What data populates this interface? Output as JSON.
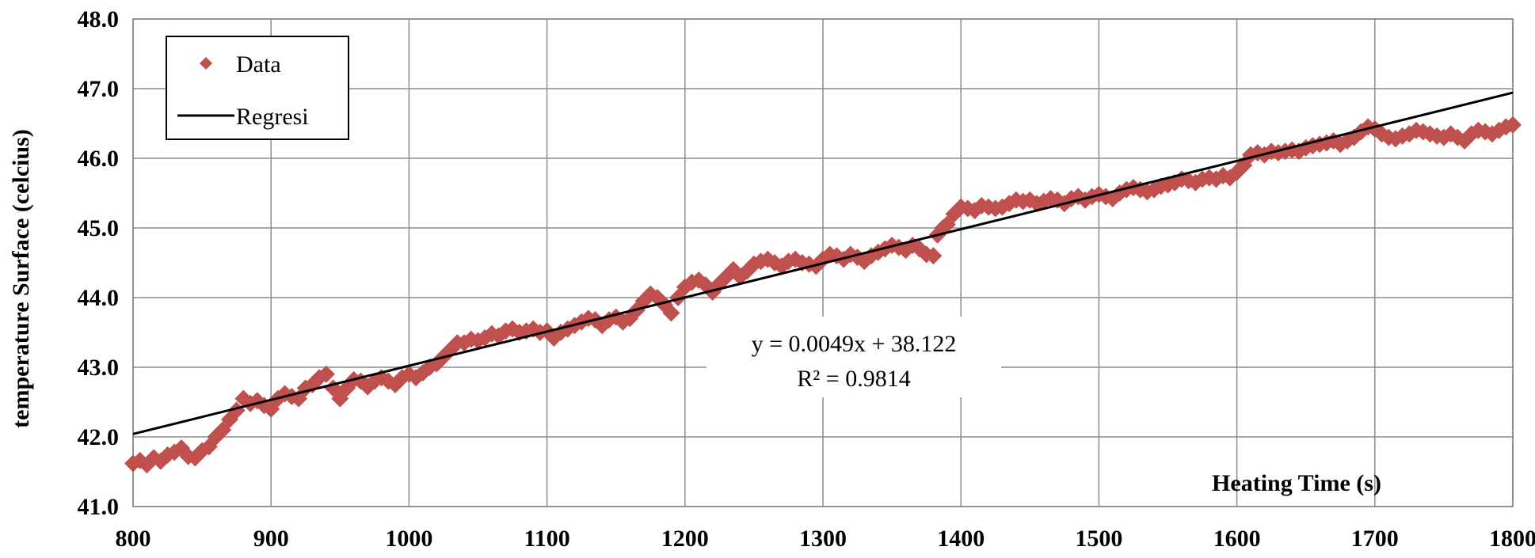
{
  "chart_data": {
    "type": "scatter",
    "xlabel": "Heating Time (s)",
    "ylabel": "temperature Surface (celcius)",
    "xlim": [
      800,
      1800
    ],
    "ylim": [
      41.0,
      48.0
    ],
    "x_ticks": [
      "800",
      "900",
      "1000",
      "1100",
      "1200",
      "1300",
      "1400",
      "1500",
      "1600",
      "1700",
      "1800"
    ],
    "y_ticks": [
      "41.0",
      "42.0",
      "43.0",
      "44.0",
      "45.0",
      "46.0",
      "47.0",
      "48.0"
    ],
    "grid": true,
    "legend": {
      "placement": "top-left",
      "entries": [
        {
          "label": "Data",
          "marker": "diamond",
          "color": "#c0504d"
        },
        {
          "label": "Regresi",
          "marker": "line",
          "color": "#000000"
        }
      ]
    },
    "annotation": {
      "equation": "y = 0.0049x + 38.122",
      "r_squared": "R² = 0.9814"
    },
    "regression": {
      "slope": 0.0049,
      "intercept": 38.122,
      "x_range": [
        800,
        1800
      ]
    },
    "series": [
      {
        "name": "Data",
        "color": "#c0504d",
        "points": [
          [
            800,
            41.62
          ],
          [
            805,
            41.66
          ],
          [
            810,
            41.6
          ],
          [
            815,
            41.7
          ],
          [
            820,
            41.65
          ],
          [
            825,
            41.74
          ],
          [
            830,
            41.78
          ],
          [
            835,
            41.84
          ],
          [
            840,
            41.72
          ],
          [
            845,
            41.7
          ],
          [
            850,
            41.8
          ],
          [
            855,
            41.86
          ],
          [
            860,
            42.0
          ],
          [
            865,
            42.1
          ],
          [
            870,
            42.25
          ],
          [
            875,
            42.38
          ],
          [
            880,
            42.55
          ],
          [
            885,
            42.48
          ],
          [
            890,
            42.52
          ],
          [
            895,
            42.45
          ],
          [
            900,
            42.4
          ],
          [
            905,
            42.55
          ],
          [
            910,
            42.62
          ],
          [
            915,
            42.58
          ],
          [
            920,
            42.55
          ],
          [
            925,
            42.7
          ],
          [
            930,
            42.75
          ],
          [
            935,
            42.85
          ],
          [
            940,
            42.9
          ],
          [
            945,
            42.7
          ],
          [
            950,
            42.55
          ],
          [
            955,
            42.7
          ],
          [
            960,
            42.82
          ],
          [
            965,
            42.8
          ],
          [
            970,
            42.72
          ],
          [
            975,
            42.8
          ],
          [
            980,
            42.85
          ],
          [
            985,
            42.8
          ],
          [
            990,
            42.75
          ],
          [
            995,
            42.85
          ],
          [
            1000,
            42.9
          ],
          [
            1005,
            42.85
          ],
          [
            1010,
            42.92
          ],
          [
            1015,
            43.0
          ],
          [
            1020,
            43.05
          ],
          [
            1025,
            43.15
          ],
          [
            1030,
            43.25
          ],
          [
            1035,
            43.35
          ],
          [
            1040,
            43.35
          ],
          [
            1045,
            43.4
          ],
          [
            1050,
            43.38
          ],
          [
            1055,
            43.42
          ],
          [
            1060,
            43.48
          ],
          [
            1065,
            43.45
          ],
          [
            1070,
            43.52
          ],
          [
            1075,
            43.55
          ],
          [
            1080,
            43.5
          ],
          [
            1085,
            43.52
          ],
          [
            1090,
            43.55
          ],
          [
            1095,
            43.5
          ],
          [
            1100,
            43.52
          ],
          [
            1105,
            43.42
          ],
          [
            1110,
            43.5
          ],
          [
            1115,
            43.55
          ],
          [
            1120,
            43.6
          ],
          [
            1125,
            43.65
          ],
          [
            1130,
            43.7
          ],
          [
            1135,
            43.68
          ],
          [
            1140,
            43.6
          ],
          [
            1145,
            43.68
          ],
          [
            1150,
            43.72
          ],
          [
            1155,
            43.65
          ],
          [
            1160,
            43.7
          ],
          [
            1165,
            43.82
          ],
          [
            1170,
            43.95
          ],
          [
            1175,
            44.05
          ],
          [
            1180,
            44.0
          ],
          [
            1185,
            43.9
          ],
          [
            1190,
            43.78
          ],
          [
            1195,
            44.0
          ],
          [
            1200,
            44.15
          ],
          [
            1205,
            44.22
          ],
          [
            1210,
            44.25
          ],
          [
            1215,
            44.18
          ],
          [
            1220,
            44.08
          ],
          [
            1225,
            44.2
          ],
          [
            1230,
            44.3
          ],
          [
            1235,
            44.4
          ],
          [
            1240,
            44.3
          ],
          [
            1245,
            44.38
          ],
          [
            1250,
            44.48
          ],
          [
            1255,
            44.52
          ],
          [
            1260,
            44.55
          ],
          [
            1265,
            44.5
          ],
          [
            1270,
            44.45
          ],
          [
            1275,
            44.52
          ],
          [
            1280,
            44.55
          ],
          [
            1285,
            44.5
          ],
          [
            1290,
            44.48
          ],
          [
            1295,
            44.45
          ],
          [
            1300,
            44.55
          ],
          [
            1305,
            44.62
          ],
          [
            1310,
            44.6
          ],
          [
            1315,
            44.55
          ],
          [
            1320,
            44.62
          ],
          [
            1325,
            44.58
          ],
          [
            1330,
            44.52
          ],
          [
            1335,
            44.6
          ],
          [
            1340,
            44.65
          ],
          [
            1345,
            44.7
          ],
          [
            1350,
            44.75
          ],
          [
            1355,
            44.72
          ],
          [
            1360,
            44.68
          ],
          [
            1365,
            44.75
          ],
          [
            1370,
            44.7
          ],
          [
            1375,
            44.62
          ],
          [
            1380,
            44.6
          ],
          [
            1383,
            44.9
          ],
          [
            1387,
            45.0
          ],
          [
            1390,
            45.05
          ],
          [
            1395,
            45.2
          ],
          [
            1400,
            45.3
          ],
          [
            1405,
            45.28
          ],
          [
            1410,
            45.25
          ],
          [
            1415,
            45.32
          ],
          [
            1420,
            45.3
          ],
          [
            1425,
            45.28
          ],
          [
            1430,
            45.3
          ],
          [
            1435,
            45.35
          ],
          [
            1440,
            45.4
          ],
          [
            1445,
            45.38
          ],
          [
            1450,
            45.4
          ],
          [
            1455,
            45.35
          ],
          [
            1460,
            45.38
          ],
          [
            1465,
            45.42
          ],
          [
            1470,
            45.4
          ],
          [
            1475,
            45.35
          ],
          [
            1480,
            45.42
          ],
          [
            1485,
            45.45
          ],
          [
            1490,
            45.4
          ],
          [
            1495,
            45.45
          ],
          [
            1500,
            45.48
          ],
          [
            1505,
            45.45
          ],
          [
            1510,
            45.42
          ],
          [
            1515,
            45.5
          ],
          [
            1520,
            45.55
          ],
          [
            1525,
            45.58
          ],
          [
            1530,
            45.55
          ],
          [
            1535,
            45.52
          ],
          [
            1540,
            45.55
          ],
          [
            1545,
            45.6
          ],
          [
            1550,
            45.62
          ],
          [
            1555,
            45.65
          ],
          [
            1560,
            45.7
          ],
          [
            1565,
            45.68
          ],
          [
            1570,
            45.65
          ],
          [
            1575,
            45.7
          ],
          [
            1580,
            45.72
          ],
          [
            1585,
            45.7
          ],
          [
            1590,
            45.75
          ],
          [
            1595,
            45.72
          ],
          [
            1600,
            45.8
          ],
          [
            1605,
            45.9
          ],
          [
            1610,
            46.05
          ],
          [
            1615,
            46.08
          ],
          [
            1620,
            46.05
          ],
          [
            1625,
            46.1
          ],
          [
            1630,
            46.08
          ],
          [
            1635,
            46.1
          ],
          [
            1640,
            46.12
          ],
          [
            1645,
            46.1
          ],
          [
            1650,
            46.15
          ],
          [
            1655,
            46.18
          ],
          [
            1660,
            46.2
          ],
          [
            1665,
            46.22
          ],
          [
            1670,
            46.25
          ],
          [
            1675,
            46.2
          ],
          [
            1680,
            46.25
          ],
          [
            1685,
            46.3
          ],
          [
            1690,
            46.38
          ],
          [
            1695,
            46.45
          ],
          [
            1700,
            46.42
          ],
          [
            1705,
            46.35
          ],
          [
            1710,
            46.3
          ],
          [
            1715,
            46.28
          ],
          [
            1720,
            46.32
          ],
          [
            1725,
            46.35
          ],
          [
            1730,
            46.4
          ],
          [
            1735,
            46.38
          ],
          [
            1740,
            46.35
          ],
          [
            1745,
            46.32
          ],
          [
            1750,
            46.3
          ],
          [
            1755,
            46.35
          ],
          [
            1760,
            46.3
          ],
          [
            1765,
            46.25
          ],
          [
            1770,
            46.35
          ],
          [
            1775,
            46.4
          ],
          [
            1780,
            46.38
          ],
          [
            1785,
            46.35
          ],
          [
            1790,
            46.4
          ],
          [
            1795,
            46.45
          ],
          [
            1800,
            46.48
          ]
        ]
      }
    ]
  }
}
